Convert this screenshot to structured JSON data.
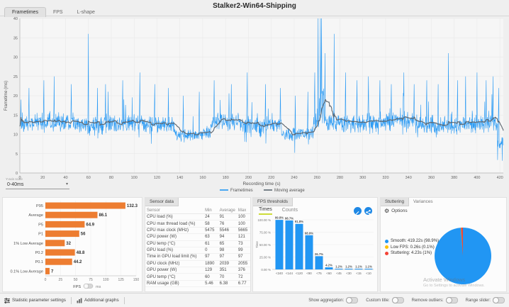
{
  "window_title": "Stalker2-Win64-Shipping",
  "top_tabs": [
    {
      "label": "Frametimes",
      "selected": true
    },
    {
      "label": "FPS",
      "selected": false
    },
    {
      "label": "L-shape",
      "selected": false
    }
  ],
  "y_axis_scale": {
    "label": "Y-axis scale",
    "value": "0-40ms"
  },
  "chart_data": [
    {
      "type": "line",
      "title": "Stalker2-Win64-Shipping",
      "xlabel": "Recording time (s)",
      "ylabel": "Frametime (ms)",
      "xlim": [
        0,
        423
      ],
      "ylim": [
        0,
        40
      ],
      "x_ticks": [
        0,
        20,
        40,
        60,
        80,
        100,
        120,
        140,
        160,
        180,
        200,
        220,
        240,
        260,
        280,
        300,
        320,
        340,
        360,
        380,
        400,
        420
      ],
      "y_ticks": [
        0,
        5,
        10,
        15,
        20,
        25,
        30,
        35,
        40
      ],
      "grid": true,
      "legend_position": "bottom",
      "legend": [
        {
          "name": "Frametimes",
          "color": "#2196F3"
        },
        {
          "name": "Moving average",
          "color": "#5B6670"
        }
      ],
      "series_spec": {
        "seed": 1337,
        "sample_hz": 4,
        "duration_s": 423,
        "moving_average_window_s": 10,
        "segments": [
          {
            "from": 0,
            "to": 135,
            "mean": 12.8,
            "noise": 2.0
          },
          {
            "from": 135,
            "to": 167,
            "mean": 10.2,
            "noise": 1.4
          },
          {
            "from": 167,
            "to": 229,
            "mean": 12.9,
            "noise": 2.0
          },
          {
            "from": 229,
            "to": 257,
            "mean": 10.0,
            "noise": 1.4
          },
          {
            "from": 257,
            "to": 262,
            "mean": 13.5,
            "noise": 2.6
          },
          {
            "from": 262,
            "to": 266,
            "mean": 16.0,
            "noise": 5.0
          },
          {
            "from": 266,
            "to": 340,
            "mean": 13.2,
            "noise": 2.1
          },
          {
            "from": 340,
            "to": 418,
            "mean": 12.6,
            "noise": 2.0
          },
          {
            "from": 418,
            "to": 424,
            "mean": 7.5,
            "noise": 1.3
          }
        ],
        "spikes": [
          {
            "x": 1,
            "v": 19
          },
          {
            "x": 8,
            "v": 22
          },
          {
            "x": 21,
            "v": 24
          },
          {
            "x": 30,
            "v": 25
          },
          {
            "x": 45,
            "v": 23
          },
          {
            "x": 60,
            "v": 36
          },
          {
            "x": 68,
            "v": 22
          },
          {
            "x": 75,
            "v": 23
          },
          {
            "x": 90,
            "v": 24
          },
          {
            "x": 105,
            "v": 26
          },
          {
            "x": 118,
            "v": 23
          },
          {
            "x": 130,
            "v": 22
          },
          {
            "x": 143,
            "v": 20
          },
          {
            "x": 157,
            "v": 21
          },
          {
            "x": 170,
            "v": 24
          },
          {
            "x": 185,
            "v": 23
          },
          {
            "x": 199,
            "v": 26
          },
          {
            "x": 215,
            "v": 23
          },
          {
            "x": 228,
            "v": 22
          },
          {
            "x": 241,
            "v": 20
          },
          {
            "x": 252,
            "v": 21
          },
          {
            "x": 258,
            "v": 26
          },
          {
            "x": 261,
            "v": 40
          },
          {
            "x": 263,
            "v": 40
          },
          {
            "x": 264,
            "v": 40
          },
          {
            "x": 267,
            "v": 31
          },
          {
            "x": 275,
            "v": 36
          },
          {
            "x": 285,
            "v": 26
          },
          {
            "x": 295,
            "v": 24
          },
          {
            "x": 305,
            "v": 25
          },
          {
            "x": 315,
            "v": 24
          },
          {
            "x": 325,
            "v": 23
          },
          {
            "x": 336,
            "v": 26
          },
          {
            "x": 345,
            "v": 23
          },
          {
            "x": 356,
            "v": 24
          },
          {
            "x": 366,
            "v": 23
          },
          {
            "x": 375,
            "v": 31
          },
          {
            "x": 383,
            "v": 24
          },
          {
            "x": 390,
            "v": 25
          },
          {
            "x": 400,
            "v": 26
          },
          {
            "x": 408,
            "v": 24
          },
          {
            "x": 414,
            "v": 25
          },
          {
            "x": 419,
            "v": 22
          }
        ]
      }
    },
    {
      "type": "bar",
      "orientation": "horizontal",
      "categories": [
        "P95",
        "Average",
        "P5",
        "P1",
        "1% Low Average",
        "P0.2",
        "P0.1",
        "0.1% Low Average"
      ],
      "values": [
        132.3,
        86.1,
        64.9,
        56,
        32,
        48.8,
        44.2,
        7
      ],
      "value_labels": [
        "132.3",
        "86.1",
        "64.9",
        "56",
        "32",
        "48.8",
        "44.2",
        "7"
      ],
      "xlabel": "FPS",
      "unit_toggle": [
        "FPS",
        "ms"
      ],
      "xlim": [
        0,
        150
      ],
      "x_ticks": [
        0,
        25,
        50,
        75,
        100,
        125,
        150
      ],
      "bar_color": "#ED7D31"
    },
    {
      "type": "bar",
      "orientation": "vertical",
      "title": "FPS thresholds",
      "categories": [
        "<240",
        "<144",
        "<120",
        "<90",
        "<75",
        "<60",
        "<45",
        "<30",
        "<15",
        "<10"
      ],
      "values": [
        99.8,
        98.7,
        91.8,
        68.9,
        26.7,
        4.2,
        1.2,
        1.2,
        1.1,
        1.1
      ],
      "value_labels": [
        "99.8%",
        "98.7%",
        "91.8%",
        "68.9%",
        "26.7%",
        "4.2%",
        "1.2%",
        "1.2%",
        "1.1%",
        "1.1%"
      ],
      "ylabel": "Time",
      "ylim": [
        0,
        100
      ],
      "y_ticks": [
        0,
        25,
        50,
        75,
        100
      ],
      "y_tick_labels": [
        "0.00 %",
        "25.00 %",
        "50.00 %",
        "75.00 %",
        "100.00 %"
      ],
      "bar_color": "#2196F3"
    },
    {
      "type": "pie",
      "title": "Stuttering",
      "slices": [
        {
          "label": "Smooth",
          "pct": 98.9,
          "display": "Smooth:  419.22s (98.9%)",
          "color": "#2196F3"
        },
        {
          "label": "Low FPS",
          "pct": 0.1,
          "display": "Low FPS:  0.26s (0.1%)",
          "color": "#FFC107"
        },
        {
          "label": "Stuttering",
          "pct": 1.0,
          "display": "Stuttering:  4.23s (1%)",
          "color": "#F44336"
        }
      ]
    }
  ],
  "sensor_panel": {
    "tab": "Sensor data",
    "columns": [
      "Sensor",
      "Min",
      "Average",
      "Max"
    ],
    "rows": [
      [
        "CPU load (%)",
        "24",
        "91",
        "100"
      ],
      [
        "CPU max thread load (%)",
        "58",
        "76",
        "100"
      ],
      [
        "CPU max clock (MHz)",
        "5475",
        "5546",
        "5665"
      ],
      [
        "CPU power (W)",
        "63",
        "94",
        "121"
      ],
      [
        "CPU temp (°C)",
        "61",
        "65",
        "73"
      ],
      [
        "GPU load (%)",
        "0",
        "98",
        "99"
      ],
      [
        "Time in GPU load limit (%)",
        "97",
        "97",
        "97"
      ],
      [
        "GPU clock (MHz)",
        "1890",
        "2039",
        "2055"
      ],
      [
        "GPU power (W)",
        "129",
        "351",
        "376"
      ],
      [
        "GPU temp (°C)",
        "60",
        "70",
        "72"
      ],
      [
        "RAM usage (GB)",
        "5.46",
        "6.38",
        "6.77"
      ]
    ]
  },
  "thresholds_panel": {
    "tab": "FPS thresholds",
    "subtabs": [
      {
        "label": "Times",
        "selected": true
      },
      {
        "label": "Counts",
        "selected": false
      }
    ]
  },
  "stuttering_panel": {
    "tabs": [
      {
        "label": "Stuttering",
        "selected": true
      },
      {
        "label": "Variances",
        "selected": false
      }
    ],
    "options_label": "Options"
  },
  "watermark": {
    "line1": "Activate Windows",
    "line2": "Go to Settings to activate Windows."
  },
  "footer": {
    "left_buttons": [
      "Statistic parameter settings",
      "Additional graphs"
    ],
    "toggles": [
      {
        "label": "Show aggregation:",
        "on": false
      },
      {
        "label": "Custom title:",
        "on": false
      },
      {
        "label": "Remove outliers:",
        "on": false
      },
      {
        "label": "Range slider:",
        "on": false
      }
    ]
  }
}
